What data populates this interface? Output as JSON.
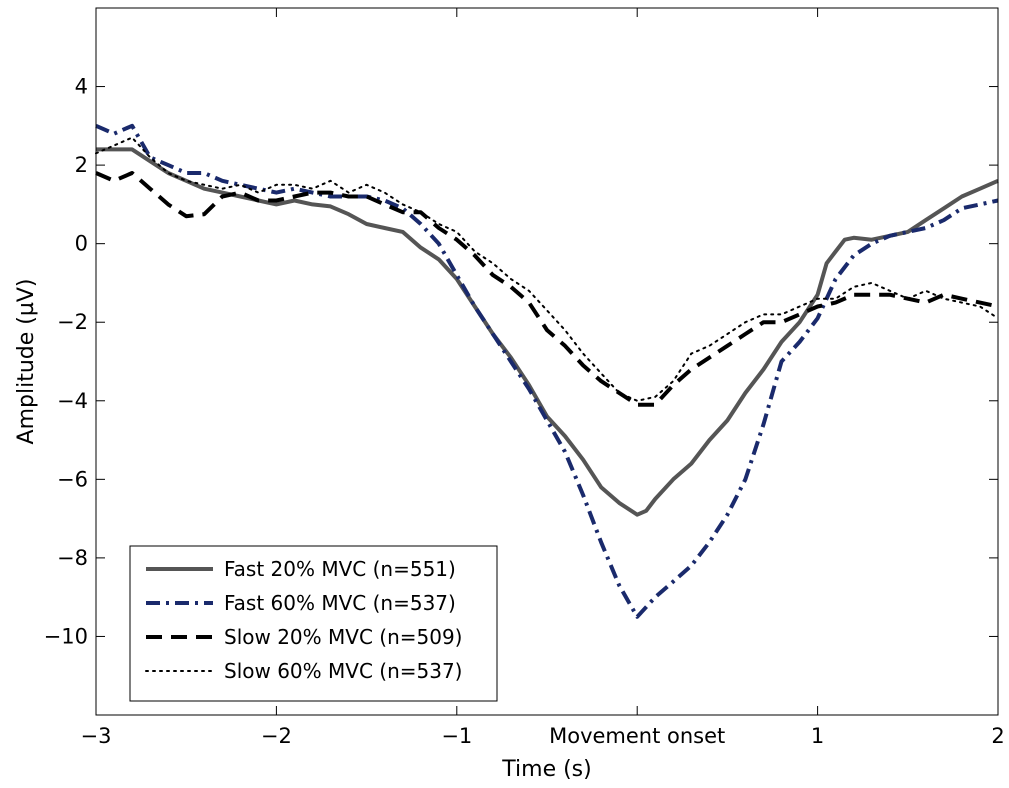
{
  "chart_data": {
    "type": "line",
    "xlabel": "Time (s)",
    "ylabel": "Amplitude (µV)",
    "xlim": [
      -3,
      2
    ],
    "ylim": [
      -12,
      6
    ],
    "grid": false,
    "legend_position": "bottom-left",
    "x_ticks": [
      {
        "value": -3,
        "label": "−3"
      },
      {
        "value": -2,
        "label": "−2"
      },
      {
        "value": -1,
        "label": "−1"
      },
      {
        "value": 0,
        "label": "Movement onset"
      },
      {
        "value": 1,
        "label": "1"
      },
      {
        "value": 2,
        "label": "2"
      }
    ],
    "y_ticks": [
      {
        "value": 4,
        "label": "4"
      },
      {
        "value": 2,
        "label": "2"
      },
      {
        "value": 0,
        "label": "0"
      },
      {
        "value": -2,
        "label": "−2"
      },
      {
        "value": -4,
        "label": "−4"
      },
      {
        "value": -6,
        "label": "−6"
      },
      {
        "value": -8,
        "label": "−8"
      },
      {
        "value": -10,
        "label": "−10"
      }
    ],
    "series": [
      {
        "name": "Fast 20% MVC (n=551)",
        "color": "#555555",
        "style": "solid",
        "points": [
          [
            -3.0,
            2.4
          ],
          [
            -2.9,
            2.4
          ],
          [
            -2.8,
            2.4
          ],
          [
            -2.7,
            2.1
          ],
          [
            -2.6,
            1.8
          ],
          [
            -2.5,
            1.6
          ],
          [
            -2.4,
            1.4
          ],
          [
            -2.3,
            1.3
          ],
          [
            -2.2,
            1.2
          ],
          [
            -2.1,
            1.1
          ],
          [
            -2.0,
            1.0
          ],
          [
            -1.9,
            1.1
          ],
          [
            -1.8,
            1.0
          ],
          [
            -1.7,
            0.95
          ],
          [
            -1.6,
            0.75
          ],
          [
            -1.5,
            0.5
          ],
          [
            -1.4,
            0.4
          ],
          [
            -1.3,
            0.3
          ],
          [
            -1.2,
            -0.1
          ],
          [
            -1.1,
            -0.4
          ],
          [
            -1.0,
            -0.9
          ],
          [
            -0.9,
            -1.6
          ],
          [
            -0.8,
            -2.3
          ],
          [
            -0.7,
            -2.9
          ],
          [
            -0.6,
            -3.6
          ],
          [
            -0.5,
            -4.4
          ],
          [
            -0.4,
            -4.9
          ],
          [
            -0.3,
            -5.5
          ],
          [
            -0.2,
            -6.2
          ],
          [
            -0.1,
            -6.6
          ],
          [
            0.0,
            -6.9
          ],
          [
            0.05,
            -6.8
          ],
          [
            0.1,
            -6.5
          ],
          [
            0.2,
            -6.0
          ],
          [
            0.3,
            -5.6
          ],
          [
            0.4,
            -5.0
          ],
          [
            0.5,
            -4.5
          ],
          [
            0.6,
            -3.8
          ],
          [
            0.7,
            -3.2
          ],
          [
            0.8,
            -2.5
          ],
          [
            0.9,
            -2.0
          ],
          [
            1.0,
            -1.3
          ],
          [
            1.05,
            -0.5
          ],
          [
            1.1,
            -0.2
          ],
          [
            1.15,
            0.1
          ],
          [
            1.2,
            0.15
          ],
          [
            1.3,
            0.1
          ],
          [
            1.4,
            0.2
          ],
          [
            1.5,
            0.3
          ],
          [
            1.6,
            0.6
          ],
          [
            1.7,
            0.9
          ],
          [
            1.8,
            1.2
          ],
          [
            1.9,
            1.4
          ],
          [
            2.0,
            1.6
          ]
        ]
      },
      {
        "name": "Fast 60% MVC (n=537)",
        "color": "#1a2a6c",
        "style": "dashdot",
        "points": [
          [
            -3.0,
            3.0
          ],
          [
            -2.9,
            2.8
          ],
          [
            -2.8,
            3.0
          ],
          [
            -2.7,
            2.2
          ],
          [
            -2.6,
            2.0
          ],
          [
            -2.5,
            1.8
          ],
          [
            -2.4,
            1.8
          ],
          [
            -2.3,
            1.6
          ],
          [
            -2.2,
            1.5
          ],
          [
            -2.1,
            1.4
          ],
          [
            -2.0,
            1.3
          ],
          [
            -1.9,
            1.4
          ],
          [
            -1.8,
            1.3
          ],
          [
            -1.7,
            1.2
          ],
          [
            -1.6,
            1.2
          ],
          [
            -1.5,
            1.2
          ],
          [
            -1.4,
            1.1
          ],
          [
            -1.3,
            0.9
          ],
          [
            -1.2,
            0.5
          ],
          [
            -1.1,
            0.0
          ],
          [
            -1.0,
            -0.8
          ],
          [
            -0.9,
            -1.6
          ],
          [
            -0.8,
            -2.3
          ],
          [
            -0.7,
            -3.0
          ],
          [
            -0.6,
            -3.7
          ],
          [
            -0.5,
            -4.5
          ],
          [
            -0.4,
            -5.3
          ],
          [
            -0.3,
            -6.4
          ],
          [
            -0.2,
            -7.6
          ],
          [
            -0.1,
            -8.7
          ],
          [
            0.0,
            -9.5
          ],
          [
            0.1,
            -9.0
          ],
          [
            0.2,
            -8.6
          ],
          [
            0.3,
            -8.2
          ],
          [
            0.4,
            -7.6
          ],
          [
            0.5,
            -6.9
          ],
          [
            0.6,
            -6.0
          ],
          [
            0.7,
            -4.6
          ],
          [
            0.8,
            -3.0
          ],
          [
            0.9,
            -2.5
          ],
          [
            1.0,
            -1.9
          ],
          [
            1.1,
            -0.9
          ],
          [
            1.2,
            -0.3
          ],
          [
            1.3,
            0.0
          ],
          [
            1.4,
            0.2
          ],
          [
            1.5,
            0.3
          ],
          [
            1.6,
            0.4
          ],
          [
            1.7,
            0.6
          ],
          [
            1.8,
            0.9
          ],
          [
            1.9,
            1.0
          ],
          [
            2.0,
            1.1
          ]
        ]
      },
      {
        "name": "Slow 20% MVC (n=509)",
        "color": "#000000",
        "style": "dashed",
        "points": [
          [
            -3.0,
            1.8
          ],
          [
            -2.9,
            1.6
          ],
          [
            -2.8,
            1.8
          ],
          [
            -2.7,
            1.4
          ],
          [
            -2.6,
            1.0
          ],
          [
            -2.5,
            0.7
          ],
          [
            -2.4,
            0.75
          ],
          [
            -2.3,
            1.2
          ],
          [
            -2.2,
            1.3
          ],
          [
            -2.1,
            1.1
          ],
          [
            -2.0,
            1.1
          ],
          [
            -1.9,
            1.2
          ],
          [
            -1.8,
            1.3
          ],
          [
            -1.7,
            1.3
          ],
          [
            -1.6,
            1.2
          ],
          [
            -1.5,
            1.2
          ],
          [
            -1.4,
            1.0
          ],
          [
            -1.3,
            0.8
          ],
          [
            -1.2,
            0.8
          ],
          [
            -1.1,
            0.4
          ],
          [
            -1.0,
            0.1
          ],
          [
            -0.9,
            -0.3
          ],
          [
            -0.8,
            -0.8
          ],
          [
            -0.7,
            -1.1
          ],
          [
            -0.6,
            -1.5
          ],
          [
            -0.5,
            -2.2
          ],
          [
            -0.4,
            -2.6
          ],
          [
            -0.3,
            -3.1
          ],
          [
            -0.2,
            -3.5
          ],
          [
            -0.1,
            -3.8
          ],
          [
            0.0,
            -4.1
          ],
          [
            0.1,
            -4.1
          ],
          [
            0.2,
            -3.6
          ],
          [
            0.3,
            -3.2
          ],
          [
            0.4,
            -2.9
          ],
          [
            0.5,
            -2.6
          ],
          [
            0.6,
            -2.3
          ],
          [
            0.7,
            -2.0
          ],
          [
            0.8,
            -2.0
          ],
          [
            0.9,
            -1.8
          ],
          [
            1.0,
            -1.6
          ],
          [
            1.1,
            -1.5
          ],
          [
            1.2,
            -1.3
          ],
          [
            1.3,
            -1.3
          ],
          [
            1.4,
            -1.3
          ],
          [
            1.5,
            -1.4
          ],
          [
            1.6,
            -1.5
          ],
          [
            1.7,
            -1.3
          ],
          [
            1.8,
            -1.4
          ],
          [
            1.9,
            -1.5
          ],
          [
            2.0,
            -1.6
          ]
        ]
      },
      {
        "name": "Slow 60% MVC (n=537)",
        "color": "#000000",
        "style": "dotted",
        "points": [
          [
            -3.0,
            2.3
          ],
          [
            -2.9,
            2.5
          ],
          [
            -2.8,
            2.7
          ],
          [
            -2.7,
            2.2
          ],
          [
            -2.6,
            1.8
          ],
          [
            -2.5,
            1.6
          ],
          [
            -2.4,
            1.5
          ],
          [
            -2.3,
            1.4
          ],
          [
            -2.2,
            1.5
          ],
          [
            -2.1,
            1.3
          ],
          [
            -2.0,
            1.5
          ],
          [
            -1.9,
            1.5
          ],
          [
            -1.8,
            1.4
          ],
          [
            -1.7,
            1.6
          ],
          [
            -1.6,
            1.3
          ],
          [
            -1.5,
            1.5
          ],
          [
            -1.4,
            1.3
          ],
          [
            -1.3,
            1.0
          ],
          [
            -1.2,
            0.8
          ],
          [
            -1.1,
            0.5
          ],
          [
            -1.0,
            0.3
          ],
          [
            -0.9,
            -0.2
          ],
          [
            -0.8,
            -0.5
          ],
          [
            -0.7,
            -0.9
          ],
          [
            -0.6,
            -1.2
          ],
          [
            -0.5,
            -1.7
          ],
          [
            -0.4,
            -2.2
          ],
          [
            -0.3,
            -2.8
          ],
          [
            -0.2,
            -3.3
          ],
          [
            -0.1,
            -3.8
          ],
          [
            0.0,
            -4.0
          ],
          [
            0.1,
            -3.9
          ],
          [
            0.2,
            -3.5
          ],
          [
            0.3,
            -2.8
          ],
          [
            0.4,
            -2.6
          ],
          [
            0.5,
            -2.3
          ],
          [
            0.6,
            -2.0
          ],
          [
            0.7,
            -1.8
          ],
          [
            0.8,
            -1.8
          ],
          [
            0.9,
            -1.6
          ],
          [
            1.0,
            -1.4
          ],
          [
            1.1,
            -1.4
          ],
          [
            1.2,
            -1.1
          ],
          [
            1.3,
            -1.0
          ],
          [
            1.4,
            -1.2
          ],
          [
            1.5,
            -1.4
          ],
          [
            1.6,
            -1.2
          ],
          [
            1.7,
            -1.4
          ],
          [
            1.8,
            -1.5
          ],
          [
            1.9,
            -1.6
          ],
          [
            2.0,
            -1.9
          ]
        ]
      }
    ]
  }
}
